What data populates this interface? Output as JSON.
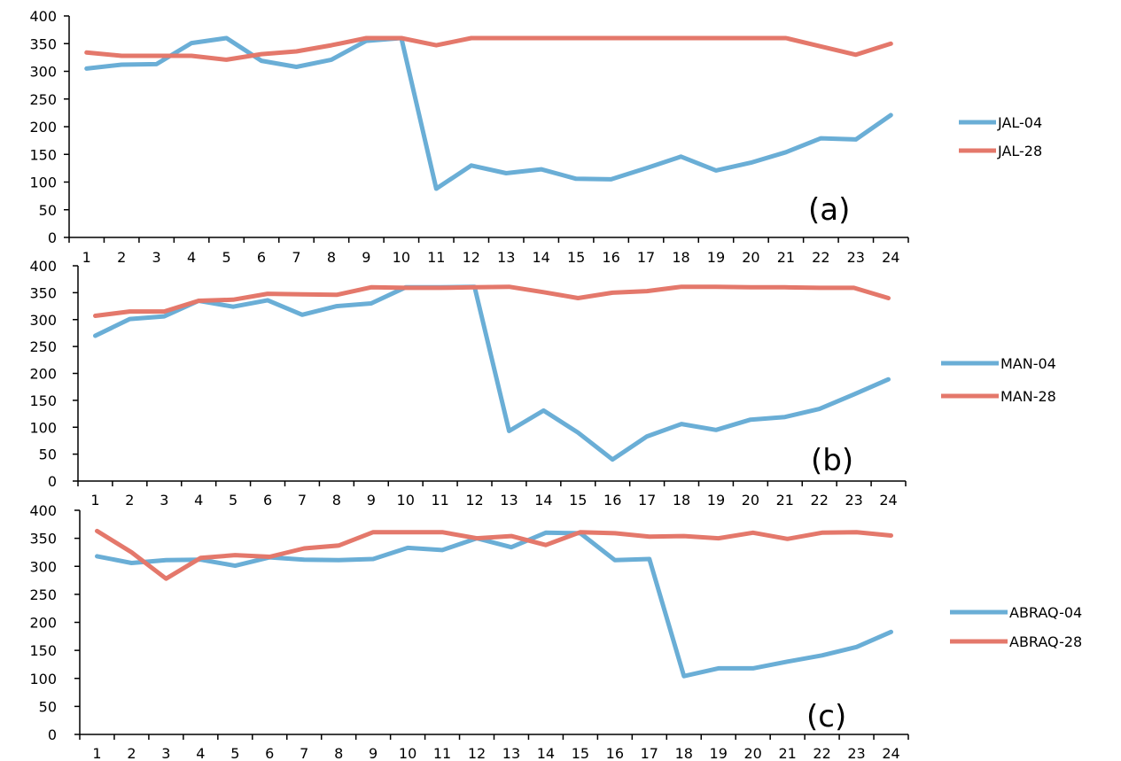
{
  "colors": {
    "series1": "#6aaed6",
    "series2": "#e4786b",
    "axis": "#000000"
  },
  "chart_data": [
    {
      "type": "line",
      "panel_label": "(a)",
      "x": [
        1,
        2,
        3,
        4,
        5,
        6,
        7,
        8,
        9,
        10,
        11,
        12,
        13,
        14,
        15,
        16,
        17,
        18,
        19,
        20,
        21,
        22,
        23,
        24
      ],
      "ylim": [
        0,
        400
      ],
      "yticks": [
        0,
        50,
        100,
        150,
        200,
        250,
        300,
        350,
        400
      ],
      "grid": false,
      "legend_position": "right",
      "series": [
        {
          "name": "JAL-04",
          "values": [
            305,
            312,
            313,
            351,
            360,
            319,
            308,
            321,
            355,
            360,
            88,
            130,
            116,
            123,
            106,
            105,
            125,
            146,
            121,
            135,
            154,
            179,
            177,
            221
          ]
        },
        {
          "name": "JAL-28",
          "values": [
            334,
            328,
            328,
            328,
            321,
            331,
            336,
            347,
            360,
            360,
            347,
            360,
            360,
            360,
            360,
            360,
            360,
            360,
            360,
            360,
            360,
            345,
            330,
            350
          ]
        }
      ]
    },
    {
      "type": "line",
      "panel_label": "(b)",
      "x": [
        1,
        2,
        3,
        4,
        5,
        6,
        7,
        8,
        9,
        10,
        11,
        12,
        13,
        14,
        15,
        16,
        17,
        18,
        19,
        20,
        21,
        22,
        23,
        24
      ],
      "ylim": [
        0,
        400
      ],
      "yticks": [
        0,
        50,
        100,
        150,
        200,
        250,
        300,
        350,
        400
      ],
      "grid": false,
      "legend_position": "right",
      "series": [
        {
          "name": "MAN-04",
          "values": [
            270,
            301,
            306,
            335,
            324,
            336,
            309,
            325,
            330,
            360,
            360,
            361,
            93,
            131,
            90,
            40,
            83,
            106,
            95,
            114,
            119,
            134,
            161,
            189
          ]
        },
        {
          "name": "MAN-28",
          "values": [
            307,
            315,
            315,
            335,
            337,
            348,
            347,
            346,
            360,
            359,
            359,
            360,
            361,
            351,
            340,
            350,
            353,
            361,
            361,
            360,
            360,
            359,
            359,
            340
          ]
        }
      ]
    },
    {
      "type": "line",
      "panel_label": "(c)",
      "x": [
        1,
        2,
        3,
        4,
        5,
        6,
        7,
        8,
        9,
        10,
        11,
        12,
        13,
        14,
        15,
        16,
        17,
        18,
        19,
        20,
        21,
        22,
        23,
        24
      ],
      "ylim": [
        0,
        400
      ],
      "yticks": [
        0,
        50,
        100,
        150,
        200,
        250,
        300,
        350,
        400
      ],
      "grid": false,
      "legend_position": "right",
      "series": [
        {
          "name": "ABRAQ-04",
          "values": [
            318,
            306,
            311,
            312,
            301,
            316,
            312,
            311,
            313,
            333,
            329,
            350,
            334,
            360,
            359,
            311,
            313,
            104,
            118,
            118,
            130,
            141,
            156,
            183
          ]
        },
        {
          "name": "ABRAQ-28",
          "values": [
            363,
            325,
            278,
            315,
            320,
            317,
            332,
            337,
            361,
            361,
            361,
            350,
            354,
            338,
            361,
            359,
            353,
            354,
            350,
            360,
            349,
            360,
            361,
            355
          ]
        }
      ]
    }
  ]
}
